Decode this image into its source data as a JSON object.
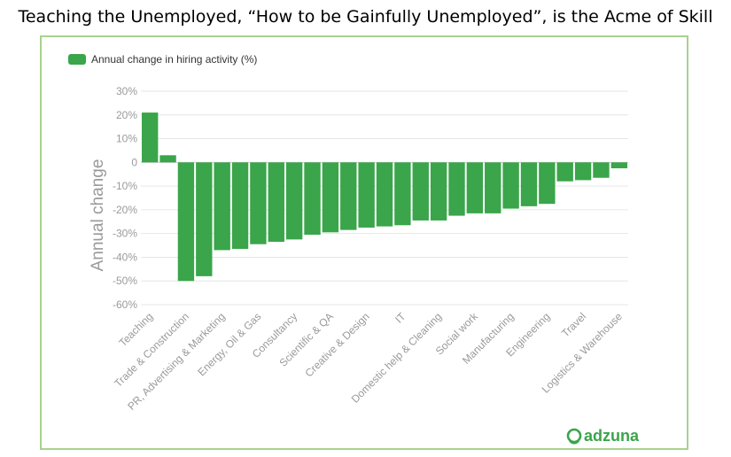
{
  "page": {
    "title": "Teaching the Unemployed, “How to be Gainfully Unemployed”, is the Acme of Skill"
  },
  "brand": {
    "name": "adzuna",
    "color": "#3aa54a"
  },
  "colors": {
    "bar": "#3aa54a",
    "frame": "#a9d18e",
    "grid": "#e6e6e6",
    "text": "#9a9a9a"
  },
  "chart_data": {
    "type": "bar",
    "title": "",
    "xlabel": "",
    "ylabel": "Annual change",
    "legend": {
      "entries": [
        "Annual change in hiring activity (%)"
      ],
      "placement": "top-left"
    },
    "grid": true,
    "ylim": [
      -60,
      30
    ],
    "yticks": [
      30,
      20,
      10,
      0,
      -10,
      -20,
      -30,
      -40,
      -50,
      -60
    ],
    "ytick_labels": [
      "30%",
      "20%",
      "10%",
      "0",
      "-10%",
      "-20%",
      "-30%",
      "-40%",
      "-50%",
      "-60%"
    ],
    "xtick_labels": [
      "Teaching",
      "Trade & Construction",
      "PR, Advertising & Marketing",
      "Energy, Oil & Gas",
      "Consultancy",
      "Scientific & QA",
      "Creative & Design",
      "IT",
      "Domestic help & Cleaning",
      "Social work",
      "Manufacturing",
      "Engineering",
      "Travel",
      "Logistics & Warehouse"
    ],
    "xtick_positions": [
      0,
      2,
      4,
      6,
      8,
      10,
      12,
      14,
      16,
      18,
      20,
      22,
      24,
      26
    ],
    "series": [
      {
        "name": "Annual change in hiring activity (%)",
        "values": [
          21,
          3,
          -50,
          -48,
          -37,
          -36.5,
          -34.5,
          -33.5,
          -32.5,
          -30.5,
          -29.5,
          -28.5,
          -27.5,
          -27,
          -26.5,
          -24.5,
          -24.5,
          -22.5,
          -21.5,
          -21.5,
          -19.5,
          -18.5,
          -17.5,
          -8,
          -7.5,
          -6.5,
          -2.5
        ]
      }
    ]
  }
}
